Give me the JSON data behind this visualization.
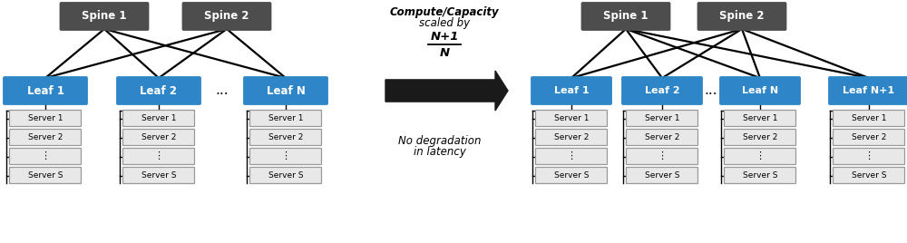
{
  "bg_color": "#ffffff",
  "spine_color": "#4d4d4d",
  "spine_text_color": "#ffffff",
  "leaf_color": "#2e86c8",
  "leaf_text_color": "#ffffff",
  "server_color": "#e8e8e8",
  "server_text_color": "#000000",
  "server_border_color": "#999999",
  "line_color": "#000000",
  "arrow_color": "#1a1a1a",
  "left_spines": [
    "Spine 1",
    "Spine 2"
  ],
  "left_leaves": [
    "Leaf 1",
    "Leaf 2",
    "Leaf N"
  ],
  "right_spines": [
    "Spine 1",
    "Spine 2"
  ],
  "right_leaves": [
    "Leaf 1",
    "Leaf 2",
    "Leaf N",
    "Leaf N+1"
  ],
  "servers": [
    "Server 1",
    "Server 2",
    "⋮",
    "Server S"
  ],
  "middle_title_line1": "Compute/Capacity",
  "middle_title_line2": "scaled by",
  "middle_fraction_num": "N+1",
  "middle_fraction_den": "N",
  "middle_note_line1": "No degradation",
  "middle_note_line2": "in latency",
  "figsize": [
    10.0,
    2.68
  ],
  "dpi": 100
}
